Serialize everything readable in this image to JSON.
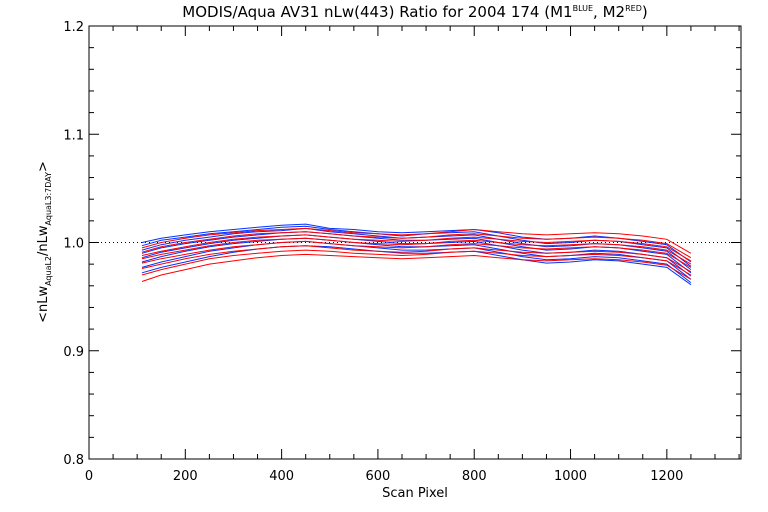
{
  "chart_data": {
    "type": "line",
    "title": "MODIS/Aqua AV31 nLw(443) Ratio for 2004 174 (M1",
    "title_sup1": "BLUE",
    "title_mid": ", M2",
    "title_sup2": "RED",
    "title_end": ")",
    "xlabel": "Scan Pixel",
    "ylabel": "<nLw",
    "ylabel_sub1": "AquaL2",
    "ylabel_mid": "/nLw",
    "ylabel_sub2": "AquaL3:7DAY",
    "ylabel_end": ">",
    "xlim": [
      0,
      1354
    ],
    "ylim": [
      0.8,
      1.2
    ],
    "xticks": [
      0,
      200,
      400,
      600,
      800,
      1000,
      1200
    ],
    "yticks": [
      0.8,
      0.9,
      1.0,
      1.1,
      1.2
    ],
    "ytick_labels": [
      "0.8",
      "0.9",
      "1.0",
      "1.1",
      "1.2"
    ],
    "reference_line": 1.0,
    "colors": {
      "M1": "#0033ff",
      "M2": "#ff0000"
    },
    "x": [
      110,
      150,
      200,
      250,
      300,
      350,
      400,
      450,
      500,
      550,
      600,
      650,
      700,
      750,
      800,
      850,
      900,
      950,
      1000,
      1050,
      1100,
      1150,
      1200,
      1250
    ],
    "series": [
      {
        "group": "M1",
        "values": [
          1.0,
          1.004,
          1.007,
          1.01,
          1.012,
          1.014,
          1.016,
          1.017,
          1.013,
          1.012,
          1.01,
          1.009,
          1.01,
          1.011,
          1.012,
          1.009,
          1.005,
          1.003,
          1.004,
          1.006,
          1.004,
          1.001,
          0.998,
          0.982
        ]
      },
      {
        "group": "M1",
        "values": [
          0.997,
          1.002,
          1.005,
          1.008,
          1.01,
          1.012,
          1.014,
          1.015,
          1.012,
          1.01,
          1.008,
          1.006,
          1.008,
          1.009,
          1.01,
          1.006,
          1.002,
          0.999,
          1.0,
          1.002,
          1.001,
          0.998,
          0.995,
          0.978
        ]
      },
      {
        "group": "M1",
        "values": [
          0.993,
          0.998,
          1.002,
          1.005,
          1.008,
          1.01,
          1.011,
          1.013,
          1.01,
          1.008,
          1.006,
          1.004,
          1.005,
          1.006,
          1.007,
          1.003,
          0.999,
          0.996,
          0.997,
          0.999,
          0.998,
          0.995,
          0.992,
          0.975
        ]
      },
      {
        "group": "M1",
        "values": [
          0.99,
          0.995,
          0.999,
          1.002,
          1.005,
          1.007,
          1.009,
          1.01,
          1.008,
          1.006,
          1.004,
          1.002,
          1.002,
          1.003,
          1.004,
          1.0,
          0.996,
          0.993,
          0.994,
          0.996,
          0.995,
          0.992,
          0.989,
          0.972
        ]
      },
      {
        "group": "M1",
        "values": [
          0.986,
          0.991,
          0.995,
          0.999,
          1.002,
          1.004,
          1.006,
          1.007,
          1.005,
          1.003,
          1.001,
          0.999,
          0.999,
          1.0,
          1.001,
          0.997,
          0.993,
          0.99,
          0.991,
          0.993,
          0.992,
          0.989,
          0.986,
          0.969
        ]
      },
      {
        "group": "M1",
        "values": [
          0.982,
          0.987,
          0.992,
          0.996,
          0.999,
          1.001,
          1.003,
          1.004,
          1.002,
          1.0,
          0.998,
          0.996,
          0.996,
          0.997,
          0.998,
          0.994,
          0.99,
          0.987,
          0.988,
          0.99,
          0.989,
          0.986,
          0.983,
          0.966
        ]
      },
      {
        "group": "M1",
        "values": [
          0.977,
          0.982,
          0.987,
          0.992,
          0.995,
          0.998,
          1.0,
          1.001,
          0.999,
          0.997,
          0.995,
          0.993,
          0.993,
          0.994,
          0.995,
          0.991,
          0.987,
          0.984,
          0.985,
          0.987,
          0.986,
          0.983,
          0.98,
          0.963
        ]
      },
      {
        "group": "M1",
        "values": [
          0.972,
          0.977,
          0.982,
          0.987,
          0.991,
          0.994,
          0.996,
          0.997,
          0.996,
          0.994,
          0.992,
          0.99,
          0.99,
          0.991,
          0.992,
          0.988,
          0.984,
          0.981,
          0.982,
          0.984,
          0.983,
          0.98,
          0.977,
          0.961
        ]
      },
      {
        "group": "M2",
        "values": [
          0.995,
          1.0,
          1.004,
          1.007,
          1.009,
          1.011,
          1.012,
          1.013,
          1.011,
          1.009,
          1.008,
          1.007,
          1.008,
          1.01,
          1.012,
          1.01,
          1.008,
          1.007,
          1.008,
          1.009,
          1.008,
          1.006,
          1.003,
          0.99
        ]
      },
      {
        "group": "M2",
        "values": [
          0.991,
          0.996,
          1.0,
          1.003,
          1.006,
          1.008,
          1.009,
          1.01,
          1.008,
          1.006,
          1.005,
          1.004,
          1.005,
          1.007,
          1.008,
          1.006,
          1.004,
          1.003,
          1.004,
          1.005,
          1.004,
          1.002,
          0.999,
          0.986
        ]
      },
      {
        "group": "M2",
        "values": [
          0.988,
          0.992,
          0.996,
          1.0,
          1.003,
          1.005,
          1.006,
          1.007,
          1.005,
          1.003,
          1.002,
          1.001,
          1.002,
          1.004,
          1.005,
          1.003,
          1.001,
          1.0,
          1.001,
          1.002,
          1.001,
          0.999,
          0.996,
          0.983
        ]
      },
      {
        "group": "M2",
        "values": [
          0.985,
          0.989,
          0.993,
          0.997,
          1.0,
          1.002,
          1.003,
          1.004,
          1.002,
          1.0,
          0.999,
          0.998,
          0.999,
          1.001,
          1.002,
          1.0,
          0.998,
          0.997,
          0.998,
          0.999,
          0.998,
          0.996,
          0.993,
          0.98
        ]
      },
      {
        "group": "M2",
        "values": [
          0.981,
          0.985,
          0.989,
          0.993,
          0.996,
          0.998,
          1.0,
          1.001,
          0.999,
          0.997,
          0.996,
          0.995,
          0.996,
          0.998,
          0.999,
          0.997,
          0.995,
          0.994,
          0.995,
          0.996,
          0.995,
          0.993,
          0.99,
          0.977
        ]
      },
      {
        "group": "M2",
        "values": [
          0.976,
          0.98,
          0.985,
          0.989,
          0.992,
          0.994,
          0.996,
          0.997,
          0.995,
          0.993,
          0.992,
          0.991,
          0.992,
          0.994,
          0.995,
          0.993,
          0.991,
          0.99,
          0.991,
          0.992,
          0.991,
          0.989,
          0.986,
          0.973
        ]
      },
      {
        "group": "M2",
        "values": [
          0.97,
          0.975,
          0.98,
          0.985,
          0.988,
          0.99,
          0.992,
          0.993,
          0.992,
          0.99,
          0.989,
          0.988,
          0.989,
          0.991,
          0.992,
          0.99,
          0.988,
          0.987,
          0.988,
          0.989,
          0.988,
          0.986,
          0.983,
          0.97
        ]
      },
      {
        "group": "M2",
        "values": [
          0.964,
          0.97,
          0.975,
          0.98,
          0.983,
          0.986,
          0.988,
          0.989,
          0.988,
          0.987,
          0.986,
          0.985,
          0.986,
          0.987,
          0.988,
          0.986,
          0.984,
          0.983,
          0.984,
          0.985,
          0.984,
          0.982,
          0.979,
          0.966
        ]
      }
    ]
  }
}
